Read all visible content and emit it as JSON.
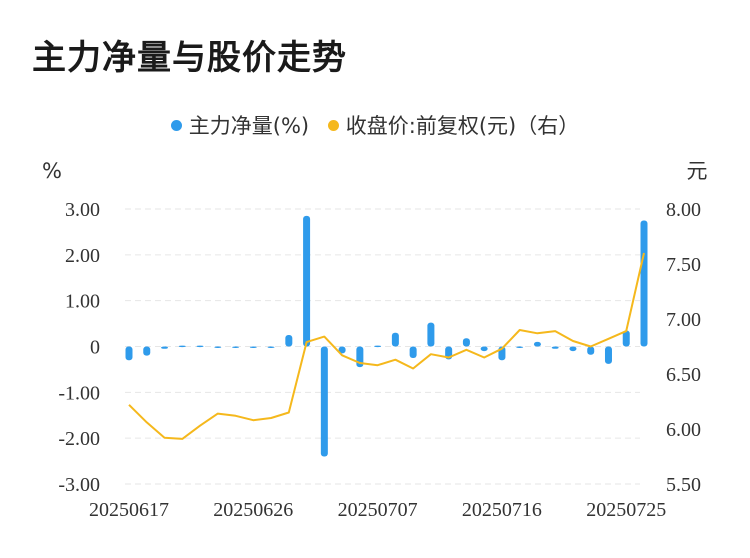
{
  "title": "主力净量与股价走势",
  "colors": {
    "bar": "#2F9BEB",
    "line": "#F5B81C",
    "grid": "#e6e6e6"
  },
  "chart_data": {
    "type": "bar+line",
    "legend": [
      {
        "name": "主力净量(%)",
        "color": "#2F9BEB"
      },
      {
        "name": "收盘价:前复权(元)（右）",
        "color": "#F5B81C"
      }
    ],
    "left_axis": {
      "unit": "%",
      "min": -3,
      "max": 3,
      "ticks": [
        "3.00",
        "2.00",
        "1.00",
        "0",
        "-1.00",
        "-2.00",
        "-3.00"
      ]
    },
    "right_axis": {
      "unit": "元",
      "min": 5.5,
      "max": 8.0,
      "ticks": [
        "8.00",
        "7.50",
        "7.00",
        "6.50",
        "6.00",
        "5.50"
      ]
    },
    "x_ticks": [
      "20250617",
      "20250626",
      "20250707",
      "20250716",
      "20250725"
    ],
    "x_tick_index": [
      0,
      7,
      14,
      21,
      28
    ],
    "series": [
      {
        "name": "主力净量(%)",
        "axis": "left",
        "type": "bar",
        "values": [
          -0.3,
          -0.2,
          -0.05,
          0.02,
          0.02,
          -0.03,
          -0.03,
          -0.02,
          -0.02,
          0.25,
          2.85,
          -2.4,
          -0.15,
          -0.45,
          0.02,
          0.3,
          -0.25,
          0.52,
          -0.28,
          0.18,
          -0.1,
          -0.3,
          -0.03,
          0.1,
          -0.05,
          -0.1,
          -0.18,
          -0.38,
          0.35,
          2.75
        ]
      },
      {
        "name": "收盘价:前复权(元)",
        "axis": "right",
        "type": "line",
        "values": [
          6.22,
          6.06,
          5.92,
          5.91,
          6.03,
          6.14,
          6.12,
          6.08,
          6.1,
          6.15,
          6.79,
          6.84,
          6.67,
          6.6,
          6.58,
          6.63,
          6.55,
          6.68,
          6.65,
          6.72,
          6.65,
          6.73,
          6.9,
          6.87,
          6.89,
          6.8,
          6.75,
          6.82,
          6.89,
          7.6
        ]
      }
    ]
  }
}
